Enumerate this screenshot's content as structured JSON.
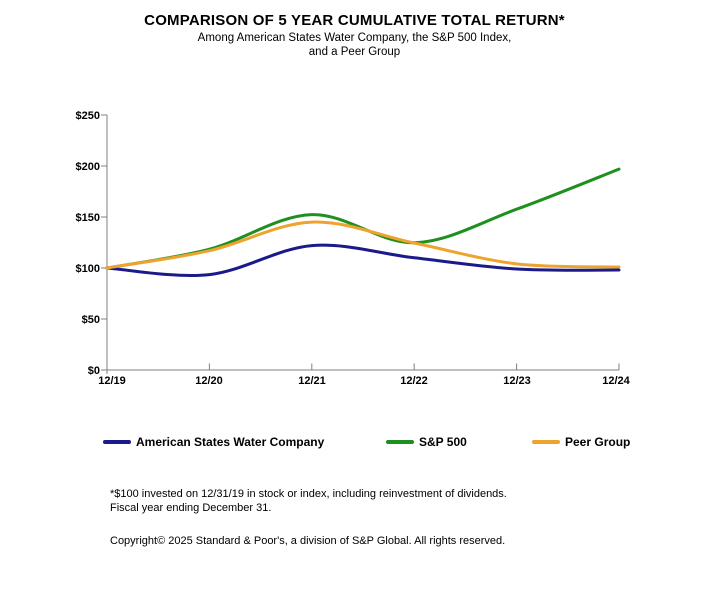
{
  "title": "COMPARISON OF 5 YEAR CUMULATIVE TOTAL RETURN*",
  "subtitle_line1": "Among American States Water Company, the S&P 500 Index,",
  "subtitle_line2": "and a Peer Group",
  "chart_data": {
    "type": "line",
    "smooth": true,
    "grid": false,
    "legend_position": "bottom",
    "x_labels": [
      "12/19",
      "12/20",
      "12/21",
      "12/22",
      "12/23",
      "12/24"
    ],
    "y_ticks": [
      "$0",
      "$50",
      "$100",
      "$150",
      "$200",
      "$250"
    ],
    "ylim": [
      0,
      250
    ],
    "xlabel": "",
    "ylabel": "",
    "series": [
      {
        "name": "American States Water Company",
        "color": "#1a1a8a",
        "values": [
          100,
          93.5,
          122,
          110,
          99,
          98
        ]
      },
      {
        "name": "S&P 500",
        "color": "#1f8f1f",
        "values": [
          100,
          118.4,
          152.4,
          124.8,
          157.6,
          197
        ]
      },
      {
        "name": "Peer Group",
        "color": "#efa32f",
        "values": [
          100,
          117,
          145,
          124.5,
          104,
          101
        ]
      }
    ]
  },
  "footnotes": {
    "line1": "*$100 invested on 12/31/19 in stock or index, including reinvestment of dividends.",
    "line2": "Fiscal year ending December 31.",
    "copyright": "Copyright© 2025 Standard & Poor's, a division of S&P Global. All rights reserved."
  },
  "colors": {
    "axis": "#808080",
    "text": "#000000",
    "background": "#ffffff"
  }
}
